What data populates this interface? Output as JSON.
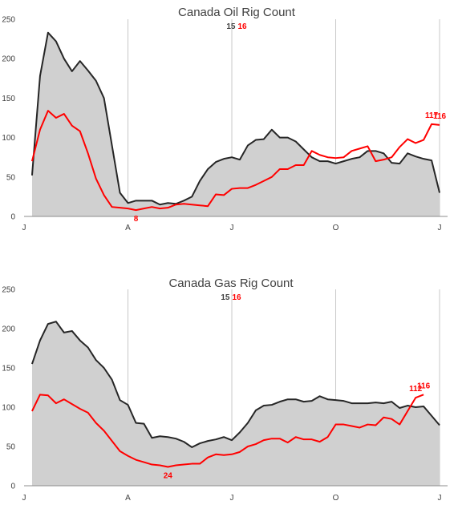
{
  "colors": {
    "area_fill": "#d0d0d0",
    "line_2015": "#262626",
    "line_2016": "#ff0000",
    "grid": "#c8c8c8",
    "axis": "#8c8c8c"
  },
  "chart_data": [
    {
      "type": "area",
      "title": "Canada Oil Rig Count",
      "legend": {
        "entries": [
          "15",
          "16"
        ],
        "placement": "top-center"
      },
      "ylim": [
        0,
        250
      ],
      "yticks": [
        0,
        50,
        100,
        150,
        200,
        250
      ],
      "xlim": [
        0,
        53
      ],
      "x_ticks": [
        {
          "x": 0,
          "label": "J"
        },
        {
          "x": 13,
          "label": "A"
        },
        {
          "x": 26,
          "label": "J"
        },
        {
          "x": 39,
          "label": "O"
        },
        {
          "x": 52,
          "label": "J"
        }
      ],
      "grid": {
        "horizontal": false,
        "vertical": true
      },
      "series": [
        {
          "name": "15",
          "style": "area",
          "x_start": 1,
          "values": [
            52,
            178,
            233,
            222,
            200,
            184,
            197,
            185,
            172,
            150,
            90,
            30,
            17,
            20,
            20,
            20,
            15,
            17,
            16,
            20,
            25,
            45,
            60,
            69,
            73,
            75,
            72,
            90,
            97,
            98,
            110,
            100,
            100,
            95,
            85,
            75,
            70,
            70,
            67,
            70,
            73,
            75,
            83,
            83,
            80,
            68,
            67,
            80,
            76,
            73,
            71,
            30
          ]
        },
        {
          "name": "16",
          "style": "line",
          "x_start": 1,
          "values": [
            70,
            110,
            134,
            125,
            130,
            115,
            108,
            80,
            48,
            27,
            12,
            11,
            10,
            8,
            10,
            12,
            10,
            11,
            15,
            16,
            15,
            14,
            13,
            28,
            27,
            35,
            36,
            36,
            40,
            45,
            50,
            60,
            60,
            65,
            65,
            83,
            78,
            75,
            74,
            75,
            83,
            86,
            89,
            70,
            72,
            75,
            88,
            98,
            93,
            97,
            117,
            116
          ]
        }
      ],
      "data_labels": [
        {
          "series": "16",
          "x": 14,
          "text": "8"
        },
        {
          "series": "16",
          "x": 51,
          "text": "117"
        },
        {
          "series": "16",
          "x": 52,
          "text": "116"
        }
      ]
    },
    {
      "type": "area",
      "title": "Canada Gas Rig Count",
      "legend": {
        "entries": [
          "15",
          "16"
        ],
        "placement": "top-center"
      },
      "ylim": [
        0,
        250
      ],
      "yticks": [
        0,
        50,
        100,
        150,
        200,
        250
      ],
      "xlim": [
        0,
        53
      ],
      "x_ticks": [
        {
          "x": 0,
          "label": "J"
        },
        {
          "x": 13,
          "label": "A"
        },
        {
          "x": 26,
          "label": "J"
        },
        {
          "x": 39,
          "label": "O"
        },
        {
          "x": 52,
          "label": "J"
        }
      ],
      "grid": {
        "horizontal": false,
        "vertical": true
      },
      "series": [
        {
          "name": "15",
          "style": "area",
          "x_start": 1,
          "values": [
            155,
            185,
            206,
            209,
            195,
            197,
            185,
            176,
            160,
            150,
            135,
            109,
            103,
            80,
            79,
            61,
            63,
            62,
            60,
            56,
            49,
            54,
            57,
            59,
            62,
            58,
            68,
            80,
            96,
            102,
            103,
            107,
            110,
            110,
            107,
            108,
            114,
            110,
            109,
            108,
            105,
            105,
            105,
            106,
            105,
            107,
            99,
            102,
            100,
            101,
            89,
            77
          ]
        },
        {
          "name": "16",
          "style": "line",
          "x_start": 1,
          "values": [
            95,
            116,
            115,
            105,
            110,
            104,
            98,
            93,
            80,
            70,
            57,
            44,
            38,
            33,
            30,
            27,
            26,
            24,
            26,
            27,
            28,
            28,
            36,
            40,
            39,
            40,
            43,
            50,
            53,
            58,
            60,
            60,
            55,
            62,
            59,
            59,
            56,
            62,
            78,
            78,
            76,
            74,
            78,
            77,
            87,
            85,
            78,
            95,
            112,
            116
          ]
        }
      ],
      "data_labels": [
        {
          "series": "16",
          "x": 18,
          "text": "24"
        },
        {
          "series": "16",
          "x": 49,
          "text": "112"
        },
        {
          "series": "16",
          "x": 50,
          "text": "116"
        }
      ]
    }
  ]
}
